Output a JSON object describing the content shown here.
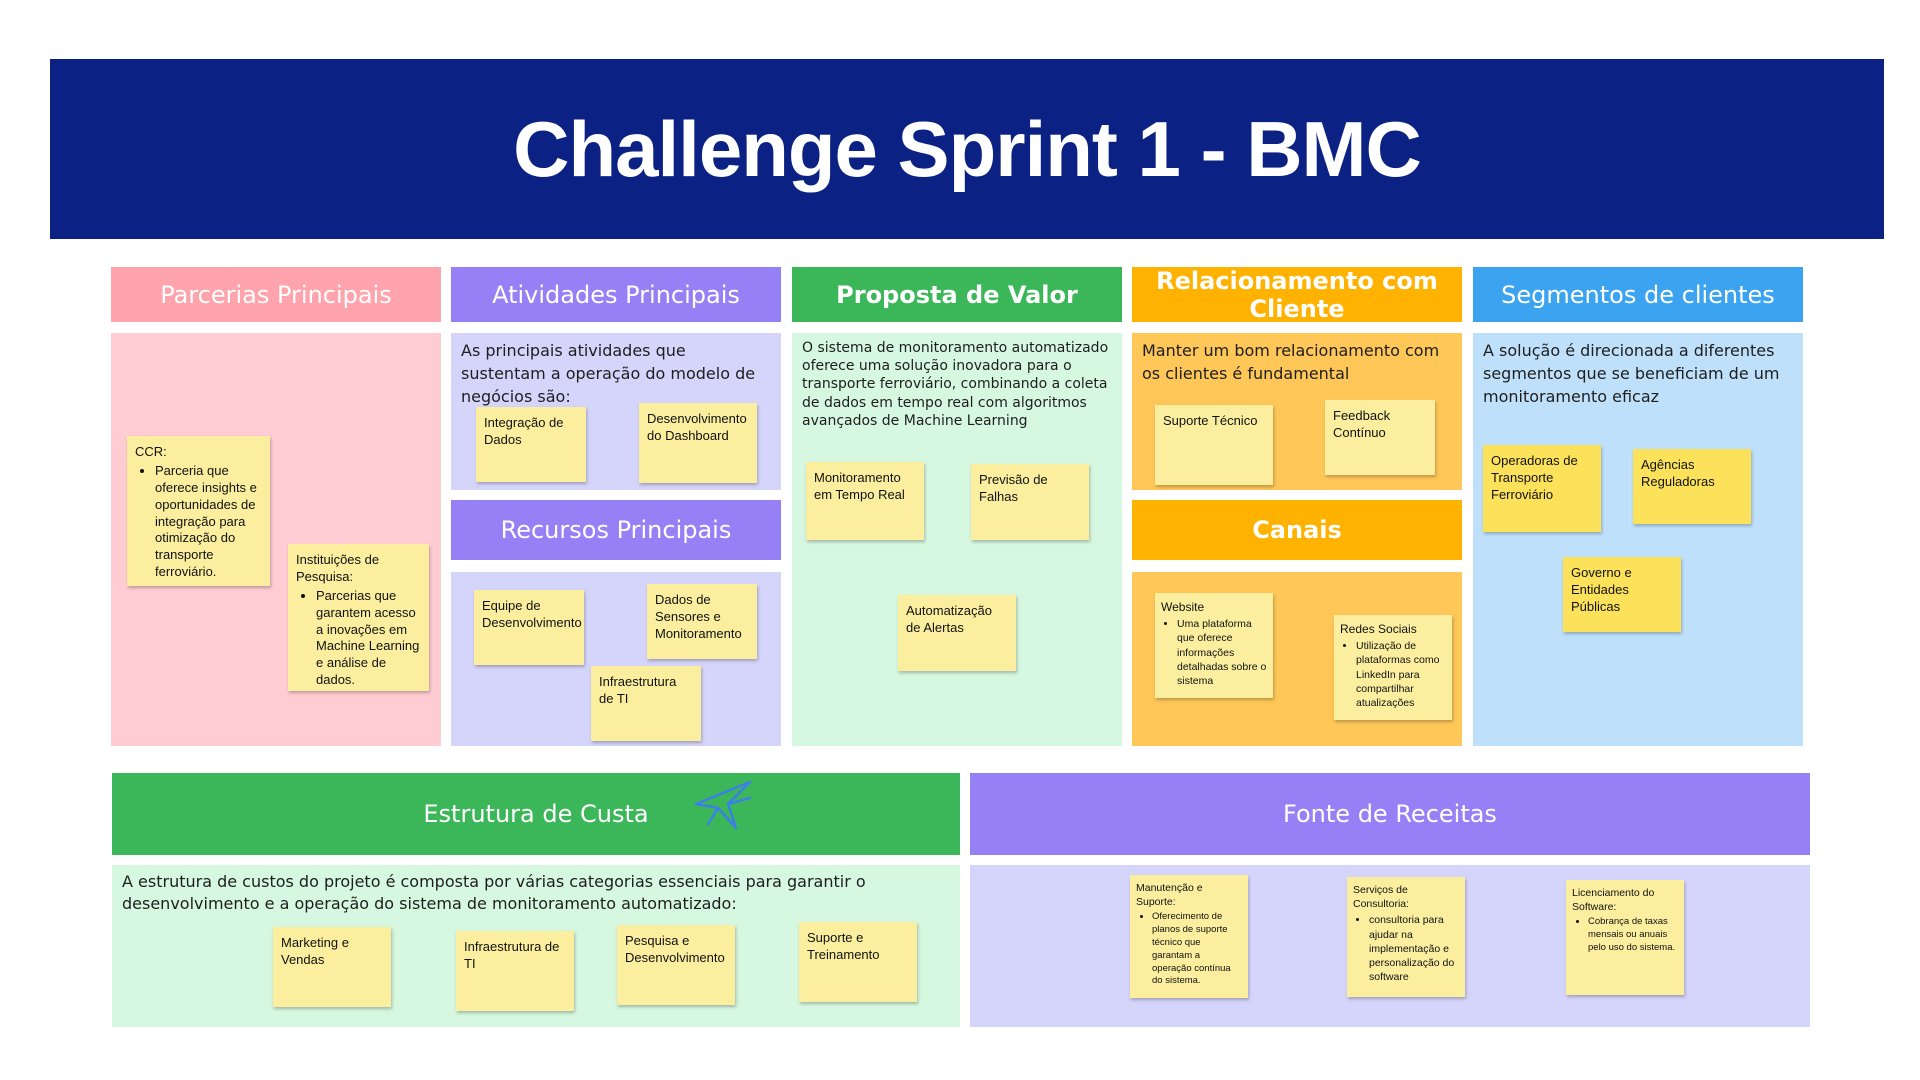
{
  "title": "Challenge Sprint 1 - BMC",
  "colors": {
    "banner": "#0b2183",
    "parcerias_header": "#ffa3ad",
    "parcerias_body": "#ffccd3",
    "atividades_header": "#9580f5",
    "atividades_body": "#d5d5fb",
    "proposta_header": "#3bb75a",
    "proposta_body": "#d6f7e0",
    "relacionamento_header": "#ffb200",
    "relacionamento_body": "#fec758",
    "segmentos_header": "#3ba3f0",
    "segmentos_body": "#bfe0fb",
    "sticky_light": "#fbef9f",
    "sticky_yellow": "#fbe25a"
  },
  "parcerias": {
    "header": "Parcerias Principais",
    "notes": [
      {
        "title": "CCR:",
        "bullets": [
          "Parceria que oferece insights e oportunidades de integração para otimização do transporte ferroviário."
        ]
      },
      {
        "title": "Instituições de Pesquisa:",
        "bullets": [
          "Parcerias que garantem acesso a inovações em Machine Learning e análise de dados."
        ]
      }
    ]
  },
  "atividades": {
    "header": "Atividades Principais",
    "desc": "As principais atividades que sustentam a operação do modelo de negócios são:",
    "notes": [
      "Integração de Dados",
      "Desenvolvimento do Dashboard"
    ]
  },
  "recursos": {
    "header": "Recursos Principais",
    "notes": [
      "Equipe de Desenvolvimento",
      "Dados de Sensores e Monitoramento",
      "Infraestrutura de TI"
    ]
  },
  "proposta": {
    "header": "Proposta de Valor",
    "desc": "O sistema de monitoramento automatizado oferece uma solução inovadora para o transporte ferroviário, combinando a coleta de dados em tempo real com algoritmos avançados de Machine Learning",
    "notes": [
      "Monitoramento em Tempo Real",
      "Previsão de Falhas",
      "Automatização de Alertas"
    ]
  },
  "relacionamento": {
    "header": "Relacionamento com Cliente",
    "desc": "Manter um bom relacionamento com os clientes é fundamental",
    "notes": [
      "Suporte Técnico",
      "Feedback Contínuo"
    ]
  },
  "canais": {
    "header": "Canais",
    "notes": [
      {
        "title": "Website",
        "bullets": [
          "Uma plataforma que oferece informações detalhadas sobre o sistema"
        ]
      },
      {
        "title": "Redes Sociais",
        "bullets": [
          "Utilização de plataformas como LinkedIn para compartilhar atualizações"
        ]
      }
    ]
  },
  "segmentos": {
    "header": "Segmentos de clientes",
    "desc": "A solução é direcionada a diferentes segmentos que se beneficiam de um monitoramento eficaz",
    "notes": [
      "Operadoras de Transporte Ferroviário",
      "Agências Reguladoras",
      "Governo e Entidades Públicas"
    ]
  },
  "custos": {
    "header": "Estrutura de Custa",
    "desc": "A estrutura de custos do projeto é composta por várias categorias essenciais para garantir o desenvolvimento e a operação do sistema de monitoramento automatizado:",
    "notes": [
      "Marketing e Vendas",
      "Infraestrutura de TI",
      "Pesquisa e Desenvolvimento",
      "Suporte e Treinamento"
    ]
  },
  "receitas": {
    "header": "Fonte de Receitas",
    "notes": [
      {
        "title": "Manutenção e Suporte:",
        "bullets": [
          "Oferecimento de planos de suporte técnico que garantam a operação contínua do sistema."
        ]
      },
      {
        "title": "Serviços de Consultoria:",
        "bullets": [
          "consultoria para ajudar na implementação e personalização do software"
        ]
      },
      {
        "title": "Licenciamento do Software:",
        "bullets": [
          "Cobrança de taxas mensais ou anuais pelo uso do sistema."
        ]
      }
    ]
  }
}
